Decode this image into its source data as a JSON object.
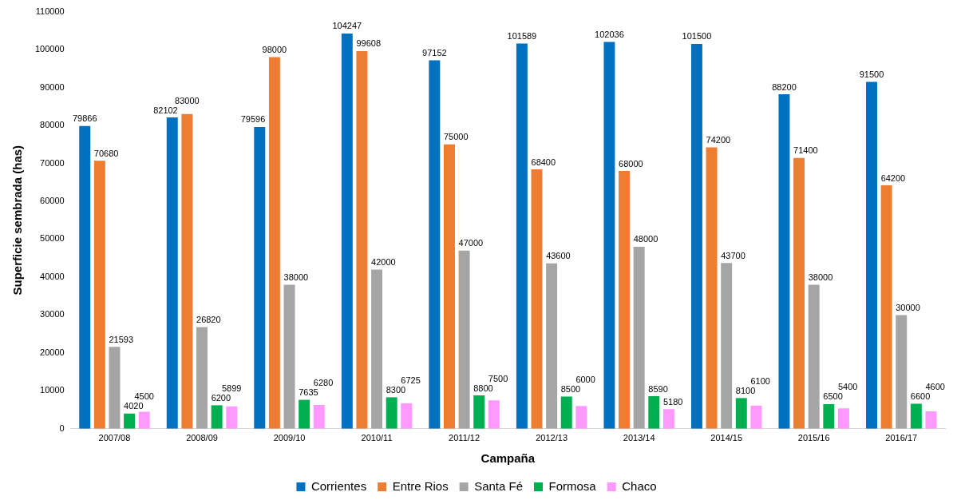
{
  "chart_data": {
    "type": "bar",
    "xlabel": "Campaña",
    "ylabel": "Superficie sembrada (has)",
    "categories": [
      "2007/08",
      "2008/09",
      "2009/10",
      "2010/11",
      "2011/12",
      "2012/13",
      "2013/14",
      "2014/15",
      "2015/16",
      "2016/17"
    ],
    "series": [
      {
        "name": "Corrientes",
        "color": "#0070c0",
        "values": [
          79866,
          82102,
          79596,
          104247,
          97152,
          101589,
          102036,
          101500,
          88200,
          91500
        ]
      },
      {
        "name": "Entre Rios",
        "color": "#ed7d31",
        "values": [
          70680,
          83000,
          98000,
          99608,
          75000,
          68400,
          68000,
          74200,
          71400,
          64200
        ]
      },
      {
        "name": "Santa Fé",
        "color": "#a5a5a5",
        "values": [
          21593,
          26820,
          38000,
          42000,
          47000,
          43600,
          48000,
          43700,
          38000,
          30000
        ]
      },
      {
        "name": "Formosa",
        "color": "#00b050",
        "values": [
          4020,
          6200,
          7635,
          8300,
          8800,
          8500,
          8590,
          8100,
          6500,
          6600
        ]
      },
      {
        "name": "Chaco",
        "color": "#ff99ff",
        "values": [
          4500,
          5899,
          6280,
          6725,
          7500,
          6000,
          5180,
          6100,
          5400,
          4600
        ]
      }
    ],
    "ylim": [
      0,
      110000
    ],
    "yticks": [
      0,
      10000,
      20000,
      30000,
      40000,
      50000,
      60000,
      70000,
      80000,
      90000,
      100000,
      110000
    ],
    "grid": false,
    "legend": "bottom",
    "data_labels": true
  }
}
